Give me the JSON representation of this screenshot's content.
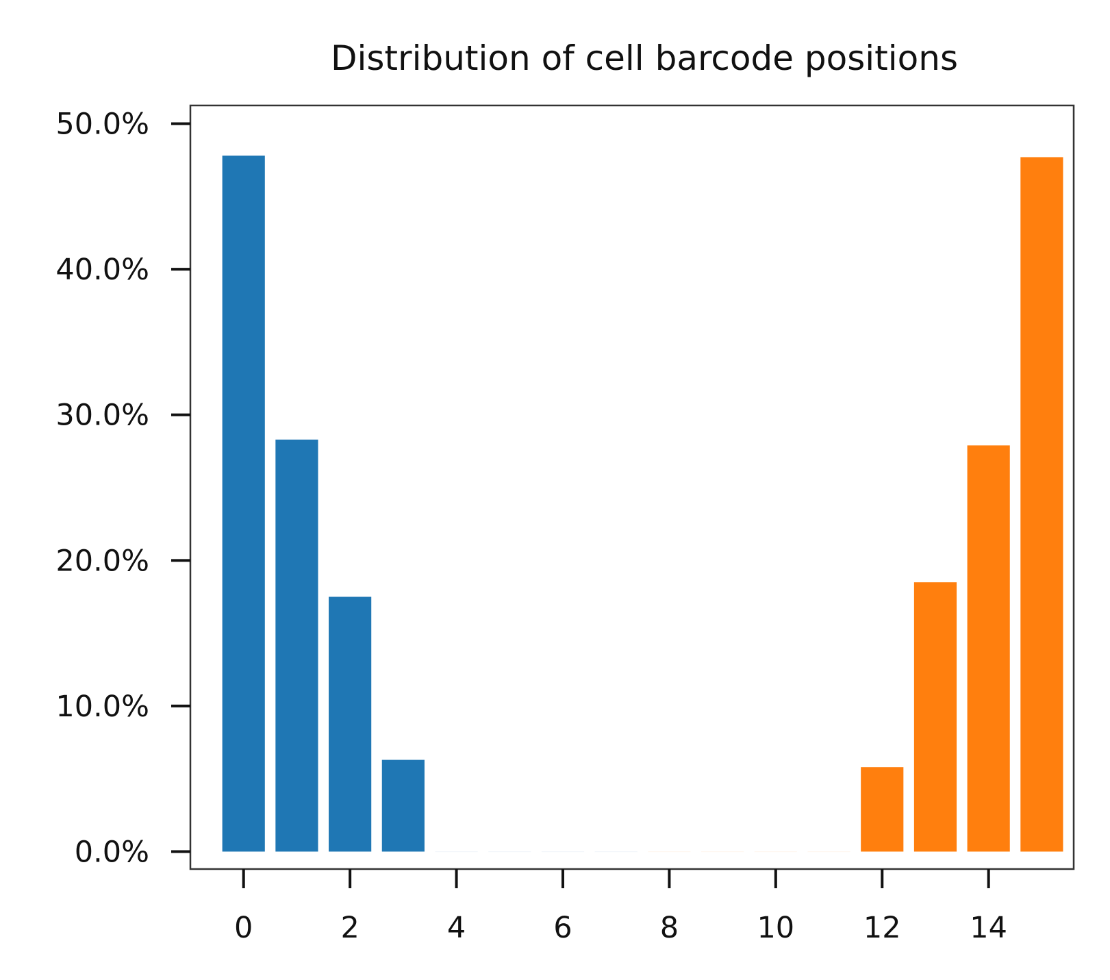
{
  "chart_data": {
    "type": "bar",
    "title": "Distribution of cell barcode positions",
    "xlabel": "",
    "ylabel": "",
    "categories": [
      0,
      1,
      2,
      3,
      4,
      5,
      6,
      7,
      8,
      9,
      10,
      11,
      12,
      13,
      14,
      15
    ],
    "values": [
      47.8,
      28.3,
      17.5,
      6.3,
      0,
      0,
      0,
      0,
      0,
      0,
      0,
      0,
      5.8,
      18.5,
      27.9,
      47.7
    ],
    "bar_colors": [
      "#1f77b4",
      "#1f77b4",
      "#1f77b4",
      "#1f77b4",
      "#1f77b4",
      "#1f77b4",
      "#1f77b4",
      "#1f77b4",
      "#ff7f0e",
      "#ff7f0e",
      "#ff7f0e",
      "#ff7f0e",
      "#ff7f0e",
      "#ff7f0e",
      "#ff7f0e",
      "#ff7f0e"
    ],
    "ylim": [
      -1.2,
      51.25
    ],
    "xlim": [
      -1,
      15.6
    ],
    "x_ticks": [
      0,
      2,
      4,
      6,
      8,
      10,
      12,
      14
    ],
    "x_tick_labels": [
      "0",
      "2",
      "4",
      "6",
      "8",
      "10",
      "12",
      "14"
    ],
    "y_ticks": [
      0,
      10,
      20,
      30,
      40,
      50
    ],
    "y_tick_labels": [
      "0.0%",
      "10.0%",
      "20.0%",
      "30.0%",
      "40.0%",
      "50.0%"
    ],
    "grid": false,
    "legend": "none"
  }
}
